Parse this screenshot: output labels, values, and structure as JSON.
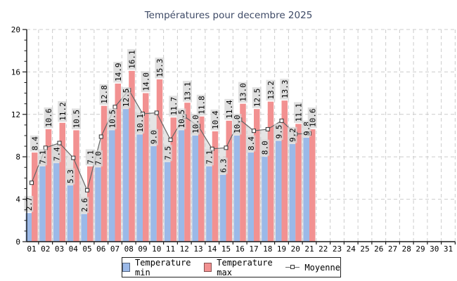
{
  "title": "Températures pour decembre 2025",
  "colors": {
    "bar_min": "#9bb9e8",
    "bar_max": "#f29191",
    "avg_line": "#666666",
    "avg_marker_fill": "#ffffff",
    "avg_marker_stroke": "#333333",
    "area_fill": "#e5e5e5",
    "grid": "#cccccc",
    "axis": "#1a1a1a",
    "title_color": "#3e4a66",
    "value_label_box": "rgba(214,214,214,0.75)"
  },
  "chart_data": {
    "type": "bar",
    "title": "Températures pour decembre 2025",
    "categories": [
      "01",
      "02",
      "03",
      "04",
      "05",
      "06",
      "07",
      "08",
      "09",
      "10",
      "11",
      "12",
      "13",
      "14",
      "15",
      "16",
      "17",
      "18",
      "19",
      "20",
      "21",
      "22",
      "23",
      "24",
      "25",
      "26",
      "27",
      "28",
      "29",
      "30",
      "31"
    ],
    "series": [
      {
        "name": "Temperature min",
        "type": "bar",
        "values": [
          2.7,
          7.1,
          7.4,
          5.3,
          2.6,
          7.0,
          10.5,
          12.5,
          10.1,
          9.0,
          7.5,
          10.5,
          10.0,
          7.1,
          6.3,
          10.0,
          8.4,
          8.0,
          9.5,
          9.2,
          9.8
        ]
      },
      {
        "name": "Temperature max",
        "type": "bar",
        "values": [
          8.4,
          10.6,
          11.2,
          10.5,
          7.1,
          12.8,
          14.9,
          16.1,
          14.0,
          15.3,
          11.7,
          13.1,
          11.8,
          10.4,
          11.4,
          13.0,
          12.5,
          13.2,
          13.3,
          11.1,
          10.6
        ]
      },
      {
        "name": "Moyenne",
        "type": "line",
        "values": [
          5.55,
          8.85,
          9.3,
          7.9,
          4.85,
          9.9,
          12.7,
          14.3,
          12.05,
          12.15,
          9.6,
          11.8,
          10.9,
          8.75,
          8.85,
          11.5,
          10.45,
          10.6,
          11.4,
          10.15,
          10.2
        ]
      }
    ],
    "ylim": [
      0,
      20
    ],
    "yticks": [
      0,
      4,
      8,
      12,
      16,
      20
    ],
    "y_minor_step": 1,
    "grid": true,
    "value_labels": true,
    "legend_position": "bottom"
  }
}
